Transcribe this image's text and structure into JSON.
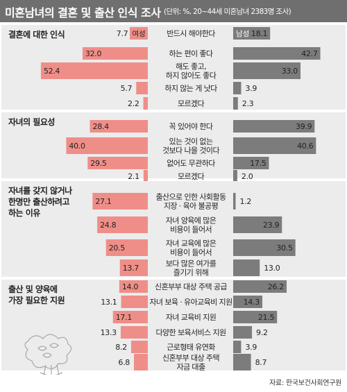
{
  "title": "미혼남녀의 결혼 및 출산 인식 조사",
  "subtitle": "(단위: %, 20~44세 미혼남녀 2383명 조사)",
  "source": "자료: 한국보건사회연구원",
  "colors": {
    "female": "#ef8e88",
    "male": "#7c7c7c",
    "section_bg": "#ececec",
    "title_bg": "#6f6f6f"
  },
  "chart_data": [
    {
      "type": "bar",
      "title": "결혼에 대한 인식",
      "legend": [
        "여성",
        "남성"
      ],
      "categories": [
        "반드시 해야한다",
        "하는 편이 좋다",
        "해도 좋고,\n하지 않아도 좋다",
        "하지 않는 게 낫다",
        "모르겠다"
      ],
      "series": [
        {
          "name": "여성",
          "values": [
            7.7,
            32.0,
            52.4,
            5.7,
            2.2
          ]
        },
        {
          "name": "남성",
          "values": [
            18.1,
            42.7,
            33.0,
            3.9,
            2.3
          ]
        }
      ]
    },
    {
      "type": "bar",
      "title": "자녀의 필요성",
      "categories": [
        "꼭 있어야 한다",
        "있는 것이 없는\n것보다 나을 것이다",
        "없어도 무관하다",
        "모르겠다"
      ],
      "series": [
        {
          "name": "여성",
          "values": [
            28.4,
            40.0,
            29.5,
            2.1
          ]
        },
        {
          "name": "남성",
          "values": [
            39.9,
            40.6,
            17.5,
            2.0
          ]
        }
      ]
    },
    {
      "type": "bar",
      "title": "자녀를 갖지 않거나\n한명만 출산하려고\n하는 이유",
      "categories": [
        "출산으로 인한 사회활동\n지장 · 육아 불공평",
        "자녀 양육에 많은\n비용이 들어서",
        "자녀 교육에 많은\n비용이 들어서",
        "보다 많은 여가를\n즐기기 위해"
      ],
      "series": [
        {
          "name": "여성",
          "values": [
            27.1,
            24.8,
            20.5,
            13.7
          ]
        },
        {
          "name": "남성",
          "values": [
            1.2,
            23.9,
            30.5,
            13.0
          ]
        }
      ]
    },
    {
      "type": "bar",
      "title": "출산 및 양육에\n가장 필요한 지원",
      "categories": [
        "신혼부부 대상 주택 공급",
        "자녀 보육 · 유아교육비 지원",
        "자녀 교육비 지원",
        "다양한 보육서비스 지원",
        "근로형태 유연화",
        "신혼부부 대상 주택\n자금 대출"
      ],
      "series": [
        {
          "name": "여성",
          "values": [
            14.0,
            13.1,
            17.1,
            13.3,
            8.2,
            6.8
          ]
        },
        {
          "name": "남성",
          "values": [
            26.2,
            14.3,
            21.5,
            9.2,
            3.9,
            8.7
          ]
        }
      ]
    }
  ]
}
